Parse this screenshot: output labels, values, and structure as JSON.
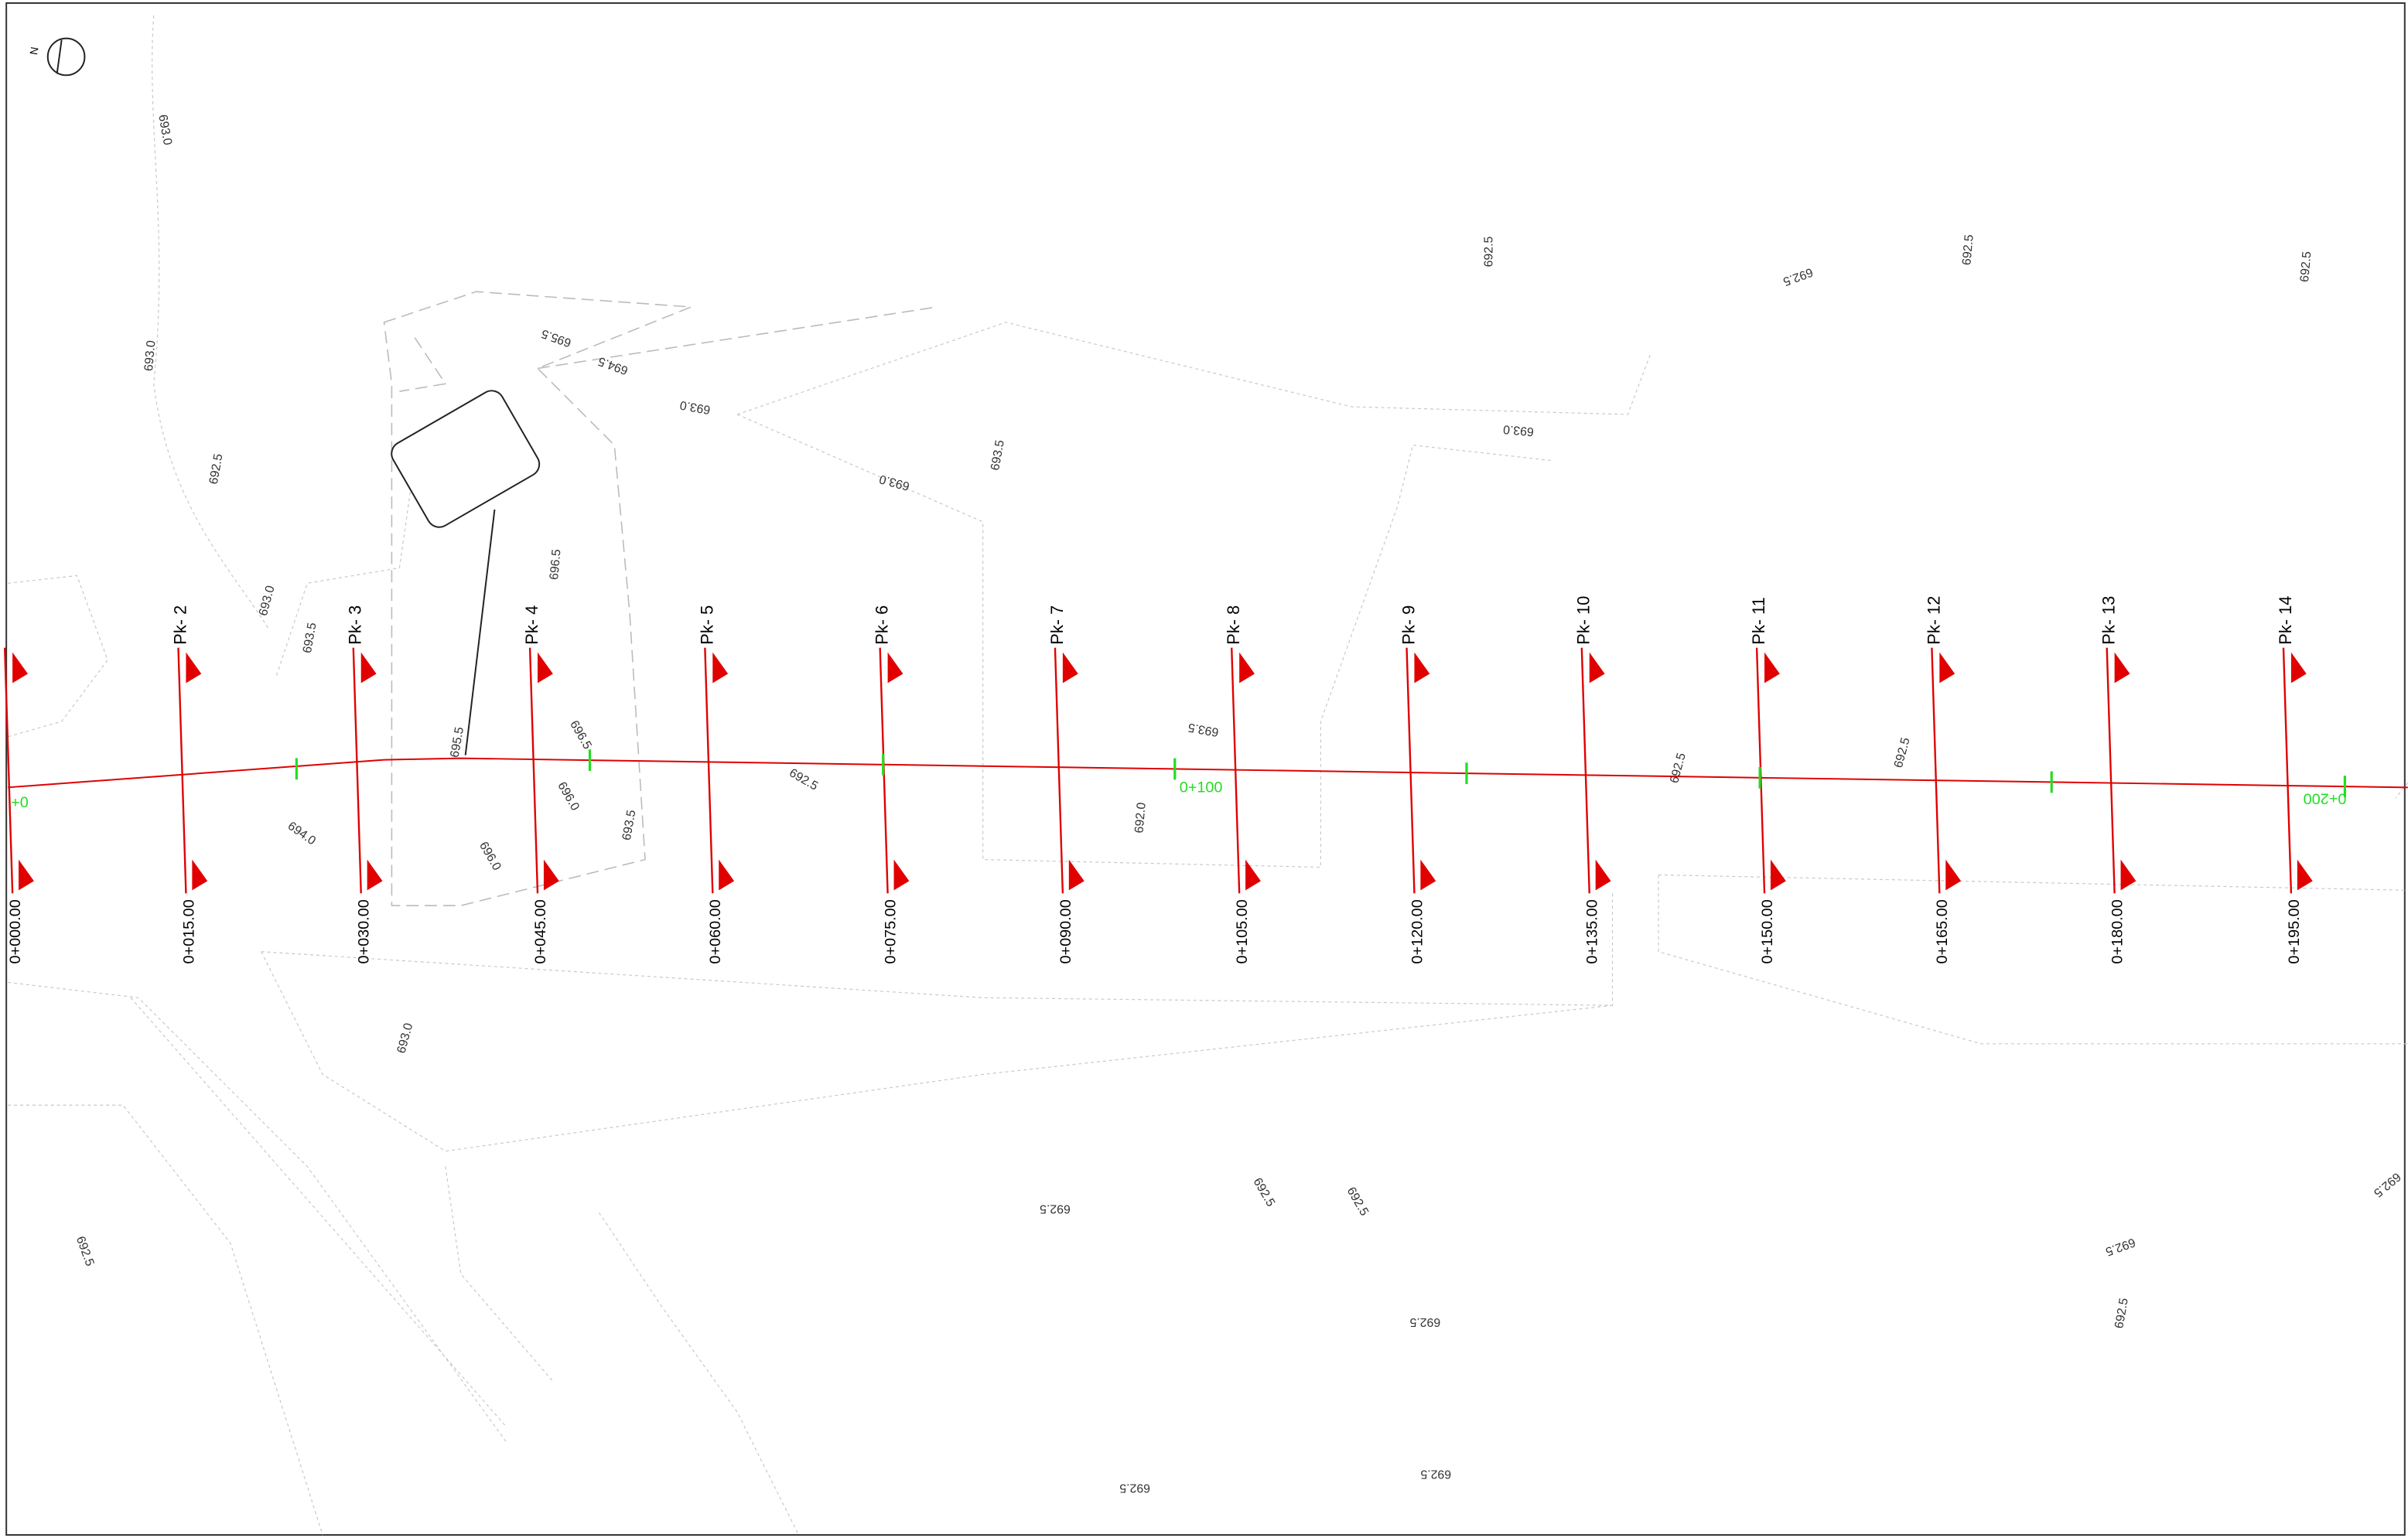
{
  "sections": [
    {
      "station": "0+000.00"
    },
    {
      "pk": "Pk- 2",
      "station": "0+015.00"
    },
    {
      "pk": "Pk- 3",
      "station": "0+030.00"
    },
    {
      "pk": "Pk- 4",
      "station": "0+045.00"
    },
    {
      "pk": "Pk- 5",
      "station": "0+060.00"
    },
    {
      "pk": "Pk- 6",
      "station": "0+075.00"
    },
    {
      "pk": "Pk- 7",
      "station": "0+090.00"
    },
    {
      "pk": "Pk- 8",
      "station": "0+105.00"
    },
    {
      "pk": "Pk- 9",
      "station": "0+120.00"
    },
    {
      "pk": "Pk- 10",
      "station": "0+135.00"
    },
    {
      "pk": "Pk- 11",
      "station": "0+150.00"
    },
    {
      "pk": "Pk- 12",
      "station": "0+165.00"
    },
    {
      "pk": "Pk- 13",
      "station": "0+180.00"
    },
    {
      "pk": "Pk- 14",
      "station": "0+195.00"
    }
  ],
  "chainage_labels": [
    "+0",
    "0+100",
    "0+200"
  ],
  "elevation_labels": [
    "693.0",
    "693.0",
    "692.5",
    "693.0",
    "693.5",
    "695.5",
    "694.5",
    "693.0",
    "693.0",
    "693.5",
    "696.5",
    "692.5",
    "692.5",
    "692.5",
    "692.5",
    "693.0",
    "695.5",
    "696.5",
    "694.0",
    "696.0",
    "696.0",
    "693.5",
    "692.5",
    "693.5",
    "692.0",
    "692.5",
    "692.5",
    "693.0",
    "692.5",
    "692.5",
    "692.5",
    "692.5",
    "692.5",
    "692.5",
    "692.5",
    "692.5",
    "692.5",
    "692.5"
  ]
}
